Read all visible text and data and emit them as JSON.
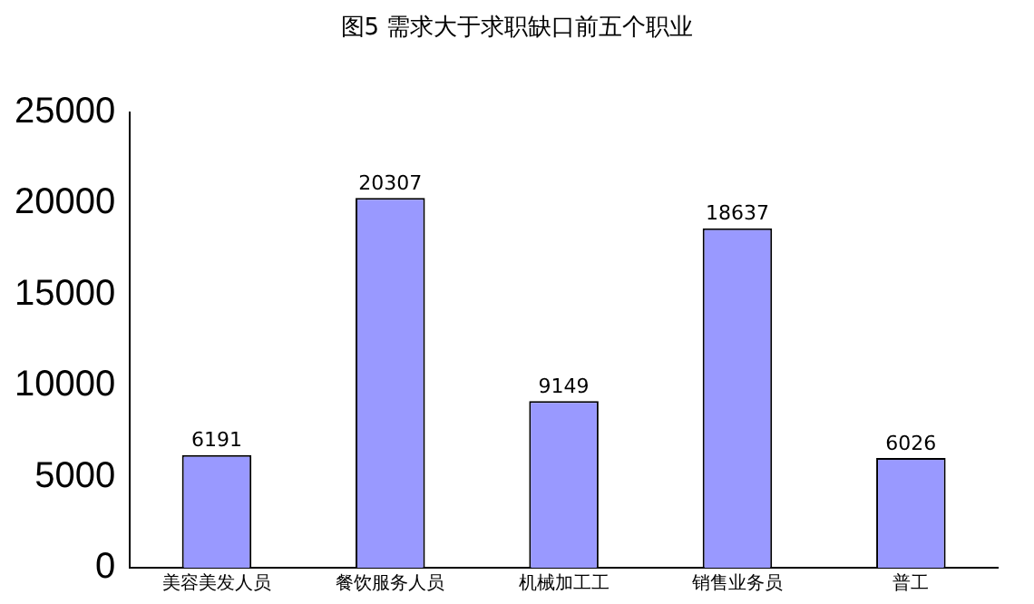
{
  "chart_data": {
    "type": "bar",
    "title": "图5  需求大于求职缺口前五个职业",
    "categories": [
      "美容美发人员",
      "餐饮服务人员",
      "机械加工工",
      "销售业务员",
      "普工"
    ],
    "values": [
      6191,
      20307,
      9149,
      18637,
      6026
    ],
    "color": "#9999ff",
    "ylim": [
      0,
      25000
    ],
    "yticks": [
      0,
      5000,
      10000,
      15000,
      20000,
      25000
    ],
    "grid": false,
    "data_labels": true
  }
}
